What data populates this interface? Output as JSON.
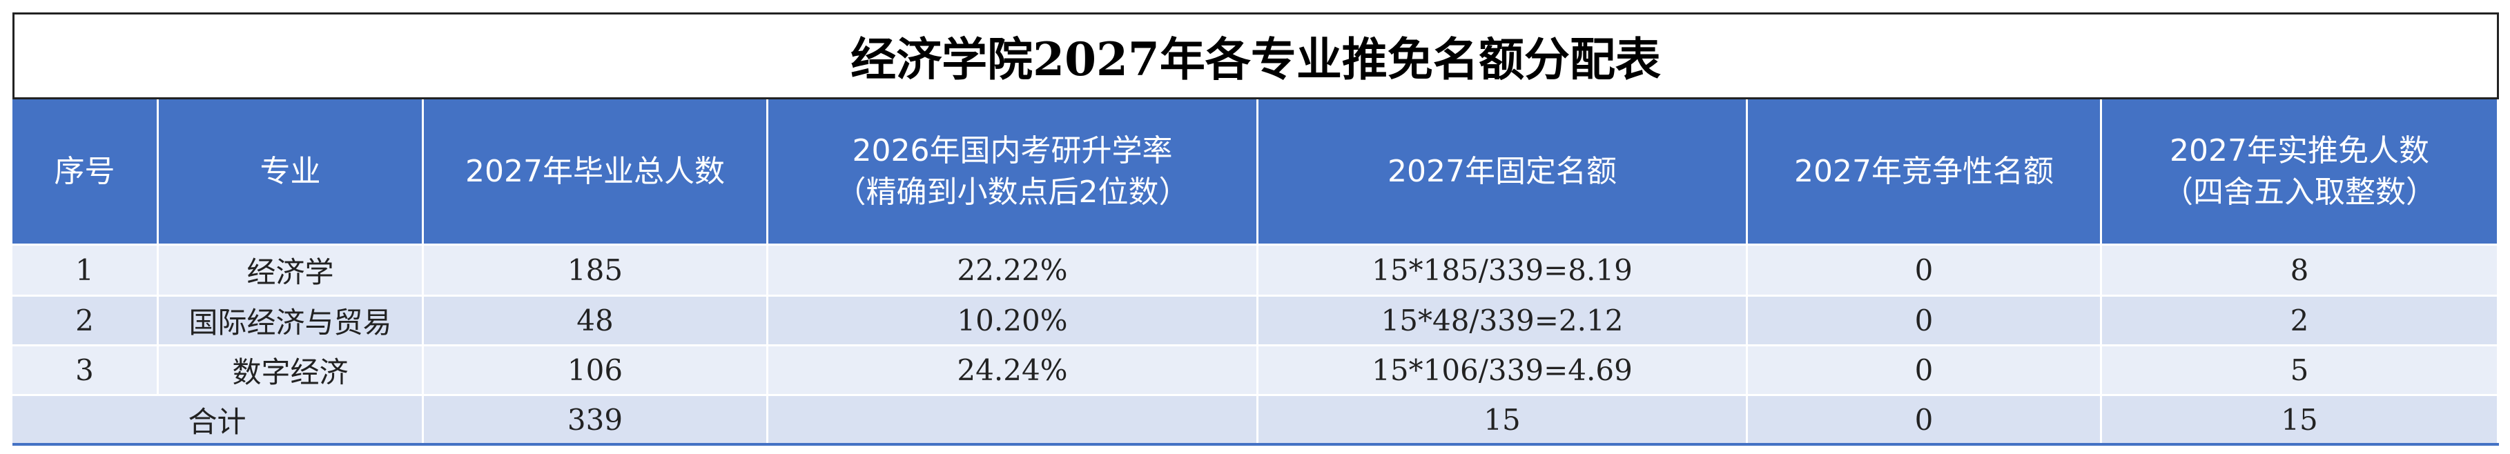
{
  "title": "经济学院2027年各专业推免名额分配表",
  "table": {
    "header": [
      [
        "序号"
      ],
      [
        "专业"
      ],
      [
        "2027年毕业总人数"
      ],
      [
        "2026年国内考研升学率",
        "（精确到小数点后2位数）"
      ],
      [
        "2027年固定名额"
      ],
      [
        "2027年竞争性名额"
      ],
      [
        "2027年实推免人数",
        "（四舍五入取整数）"
      ]
    ],
    "rows": [
      [
        "1",
        "经济学",
        "185",
        "22.22%",
        "15*185/339=8.19",
        "0",
        "8"
      ],
      [
        "2",
        "国际经济与贸易",
        "48",
        "10.20%",
        "15*48/339=2.12",
        "0",
        "2"
      ],
      [
        "3",
        "数字经济",
        "106",
        "24.24%",
        "15*106/339=4.69",
        "0",
        "5"
      ]
    ],
    "total": {
      "label": "合计",
      "graduates": "339",
      "fixed": "15",
      "competitive": "0",
      "actual": "15"
    }
  }
}
